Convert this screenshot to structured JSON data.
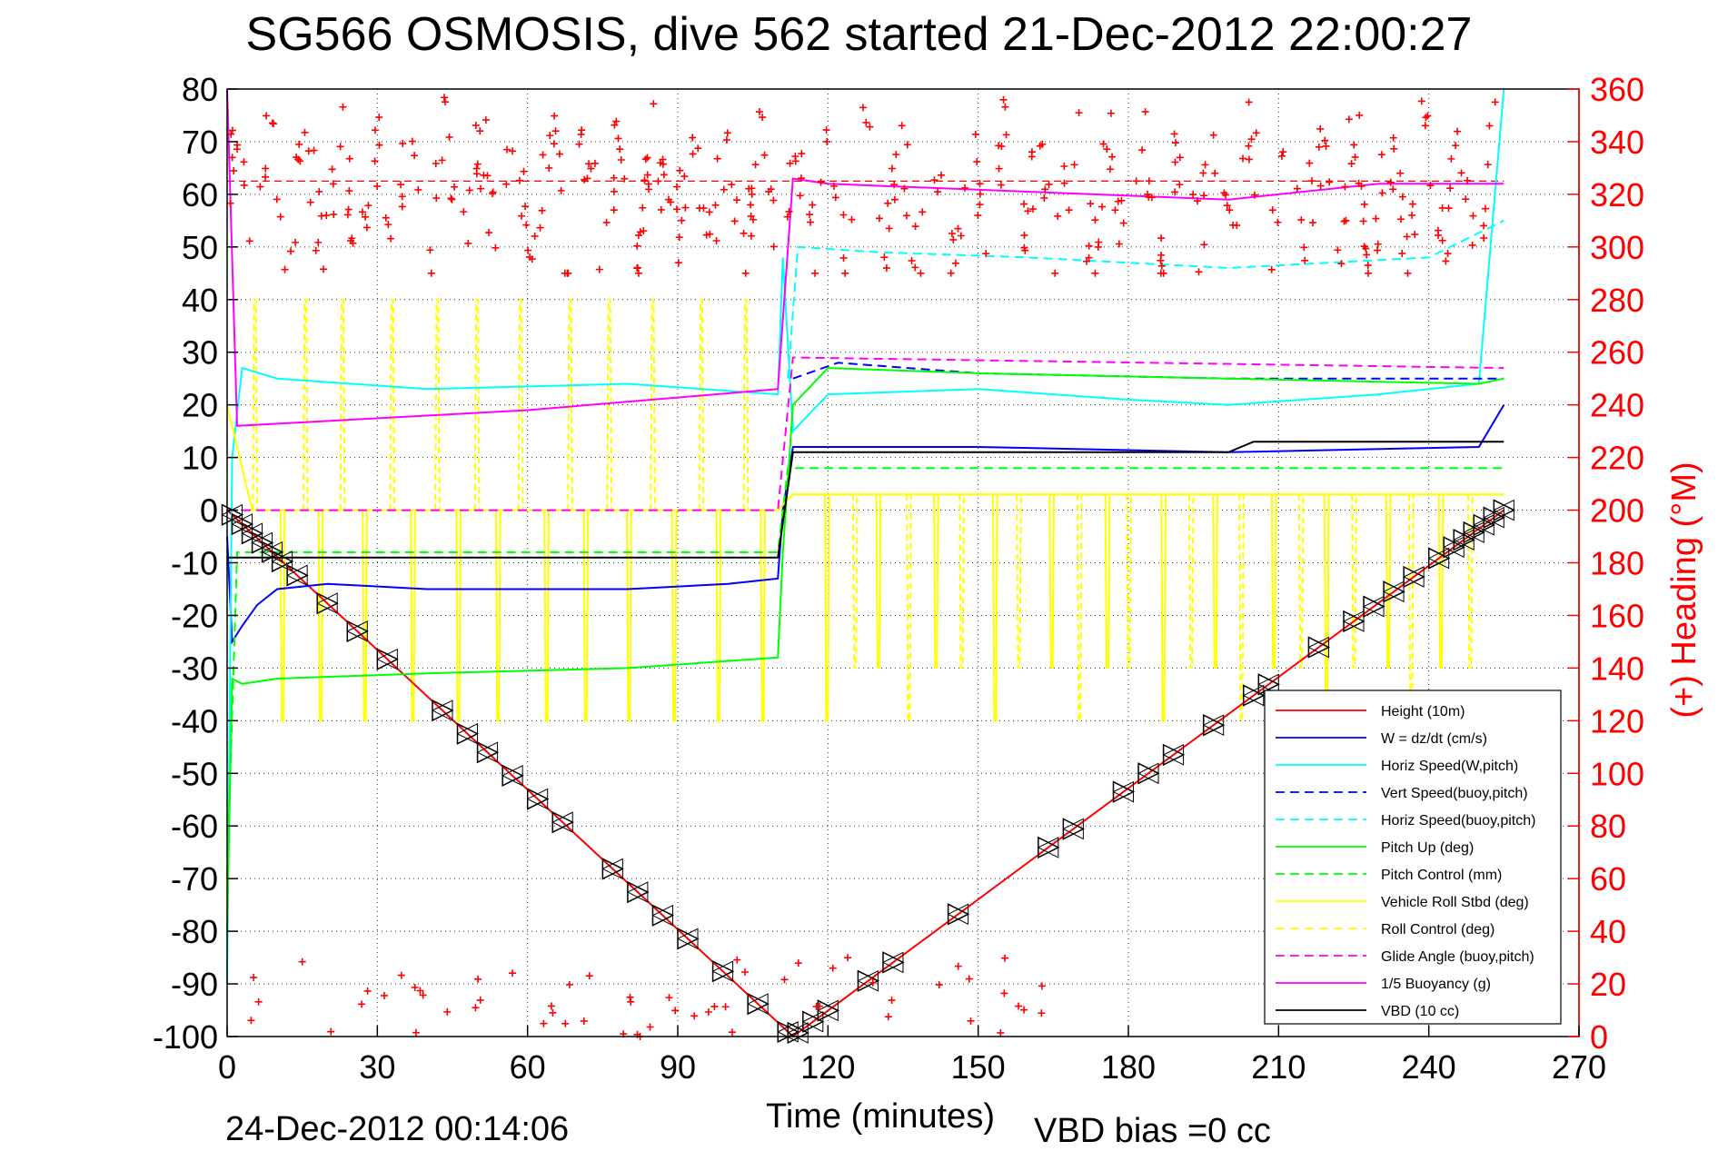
{
  "chart_data": {
    "type": "line",
    "title": "SG566 OSMOSIS, dive 562 started 21-Dec-2012 22:00:27",
    "xlabel": "Time (minutes)",
    "ylabel_right": "(+) Heading (°M)",
    "xlim": [
      0,
      270
    ],
    "ylim": [
      -100,
      80
    ],
    "ylim_right": [
      0,
      360
    ],
    "x_ticks": [
      "0",
      "30",
      "60",
      "90",
      "120",
      "150",
      "180",
      "210",
      "240",
      "270"
    ],
    "y_ticks": [
      "80",
      "70",
      "60",
      "50",
      "40",
      "30",
      "20",
      "10",
      "0",
      "-10",
      "-20",
      "-30",
      "-40",
      "-50",
      "-60",
      "-70",
      "-80",
      "-90",
      "-100"
    ],
    "y_ticks_right": [
      "360",
      "340",
      "320",
      "300",
      "280",
      "260",
      "240",
      "220",
      "200",
      "180",
      "160",
      "140",
      "120",
      "100",
      "80",
      "60",
      "40",
      "20",
      "0"
    ],
    "grid": true,
    "legend_position": "bottom-right",
    "series": [
      {
        "name": "Height (10m)",
        "color": "#ff0000",
        "style": "solid",
        "x": [
          0,
          113,
          255
        ],
        "values": [
          0,
          -100,
          0
        ]
      },
      {
        "name": "W = dz/dt (cm/s)",
        "color": "#0000ff",
        "style": "solid",
        "x": [
          0,
          1,
          3,
          6,
          10,
          20,
          40,
          60,
          80,
          100,
          110,
          111,
          113,
          120,
          150,
          200,
          250,
          255
        ],
        "values": [
          -5,
          -25,
          -22,
          -18,
          -15,
          -14,
          -15,
          -15,
          -15,
          -14,
          -13,
          0,
          12,
          12,
          12,
          11,
          12,
          20
        ]
      },
      {
        "name": "Horiz Speed(W,pitch)",
        "color": "#00ffff",
        "style": "solid",
        "x": [
          0,
          1,
          3,
          10,
          40,
          80,
          110,
          111,
          113,
          120,
          150,
          180,
          200,
          230,
          250,
          255
        ],
        "values": [
          -90,
          10,
          27,
          25,
          23,
          24,
          22,
          48,
          15,
          22,
          23,
          21,
          20,
          22,
          24,
          80
        ]
      },
      {
        "name": "Vert Speed(buoy,pitch)",
        "color": "#0000ff",
        "style": "dashed",
        "x": [
          113,
          122,
          150,
          200,
          255
        ],
        "values": [
          25,
          28,
          26,
          25,
          25
        ]
      },
      {
        "name": "Horiz Speed(buoy,pitch)",
        "color": "#00ffff",
        "style": "dashed",
        "x": [
          112,
          114,
          130,
          160,
          200,
          240,
          255
        ],
        "values": [
          25,
          50,
          49,
          48,
          46,
          48,
          55
        ]
      },
      {
        "name": "Pitch Up (deg)",
        "color": "#00ff00",
        "style": "solid",
        "x": [
          0,
          1,
          3,
          10,
          40,
          80,
          110,
          111,
          113,
          120,
          150,
          200,
          250,
          255
        ],
        "values": [
          -80,
          -32,
          -33,
          -32,
          -31,
          -30,
          -28,
          -8,
          20,
          27,
          26,
          25,
          24,
          25
        ]
      },
      {
        "name": "Pitch Control (mm)",
        "color": "#00ff00",
        "style": "dashed",
        "x": [
          0,
          2,
          110,
          112,
          255
        ],
        "values": [
          -70,
          -8,
          -8,
          8,
          8
        ]
      },
      {
        "name": "Vehicle Roll Stbd (deg)",
        "color": "#ffff00",
        "style": "solid",
        "x": [
          0,
          5,
          110,
          113,
          255
        ],
        "values": [
          20,
          0,
          0,
          3,
          3
        ]
      },
      {
        "name": "Roll Control (deg)",
        "color": "#ffff00",
        "style": "dashed",
        "x": [
          0,
          110,
          113,
          255
        ],
        "values": [
          0,
          0,
          3,
          3
        ]
      },
      {
        "name": "Glide Angle (buoy,pitch)",
        "color": "#ff00ff",
        "style": "dashed",
        "x": [
          0,
          110,
          113,
          255
        ],
        "values": [
          0,
          0,
          29,
          27
        ]
      },
      {
        "name": "1/5 Buoyancy (g)",
        "color": "#ff00ff",
        "style": "solid",
        "x": [
          0,
          2,
          60,
          110,
          113,
          120,
          200,
          230,
          255
        ],
        "values": [
          80,
          16,
          19,
          23,
          63,
          62,
          59,
          62,
          62
        ]
      },
      {
        "name": "VBD (10 cc)",
        "color": "#000000",
        "style": "solid",
        "x": [
          0,
          2,
          110,
          113,
          200,
          205,
          255
        ],
        "values": [
          -9,
          -9,
          -9,
          11,
          11,
          13,
          13
        ]
      }
    ],
    "heading": {
      "axis": "right",
      "marker": "+",
      "color": "#ff0000",
      "mean_line": 325
    },
    "height_markers": {
      "marker": "triangle",
      "color": "#000000"
    },
    "legend": [
      "Height (10m)",
      "W = dz/dt (cm/s)",
      "Horiz Speed(W,pitch)",
      "Vert Speed(buoy,pitch)",
      "Horiz Speed(buoy,pitch)",
      "Pitch Up (deg)",
      "Pitch Control (mm)",
      "Vehicle Roll Stbd (deg)",
      "Roll Control (deg)",
      "Glide Angle (buoy,pitch)",
      "1/5 Buoyancy (g)",
      "VBD (10 cc)"
    ]
  },
  "footer": {
    "timestamp": "24-Dec-2012 00:14:06",
    "vbd_bias": "VBD bias =0 cc"
  }
}
